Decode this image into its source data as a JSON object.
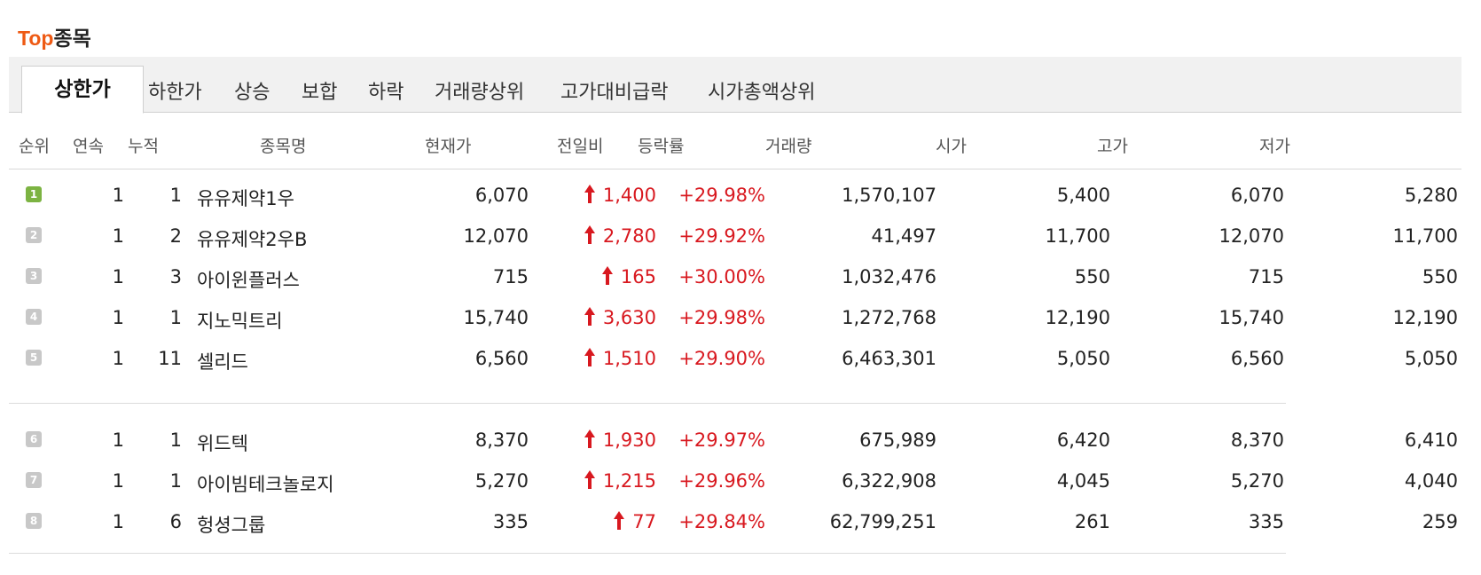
{
  "section": {
    "title_accent": "Top",
    "title_rest": "종목"
  },
  "tabs": [
    "상한가",
    "하한가",
    "상승",
    "보합",
    "하락",
    "거래량상위",
    "고가대비급락",
    "시가총액상위"
  ],
  "columns": [
    "순위",
    "연속",
    "누적",
    "종목명",
    "현재가",
    "전일비",
    "등락률",
    "거래량",
    "시가",
    "고가",
    "저가"
  ],
  "colors": {
    "accent": "#ee5a14",
    "up": "#d8181f",
    "rank1": "#7cb342",
    "rank": "#c8c8c8"
  },
  "rows": [
    {
      "rank": "1",
      "cont": "1",
      "cum": "1",
      "name": "유유제약1우",
      "price": "6,070",
      "change": "1,400",
      "rate": "+29.98%",
      "volume": "1,570,107",
      "open": "5,400",
      "high": "6,070",
      "low": "5,280"
    },
    {
      "rank": "2",
      "cont": "1",
      "cum": "2",
      "name": "유유제약2우B",
      "price": "12,070",
      "change": "2,780",
      "rate": "+29.92%",
      "volume": "41,497",
      "open": "11,700",
      "high": "12,070",
      "low": "11,700"
    },
    {
      "rank": "3",
      "cont": "1",
      "cum": "3",
      "name": "아이윈플러스",
      "price": "715",
      "change": "165",
      "rate": "+30.00%",
      "volume": "1,032,476",
      "open": "550",
      "high": "715",
      "low": "550"
    },
    {
      "rank": "4",
      "cont": "1",
      "cum": "1",
      "name": "지노믹트리",
      "price": "15,740",
      "change": "3,630",
      "rate": "+29.98%",
      "volume": "1,272,768",
      "open": "12,190",
      "high": "15,740",
      "low": "12,190"
    },
    {
      "rank": "5",
      "cont": "1",
      "cum": "11",
      "name": "셀리드",
      "price": "6,560",
      "change": "1,510",
      "rate": "+29.90%",
      "volume": "6,463,301",
      "open": "5,050",
      "high": "6,560",
      "low": "5,050"
    },
    {
      "rank": "6",
      "cont": "1",
      "cum": "1",
      "name": "위드텍",
      "price": "8,370",
      "change": "1,930",
      "rate": "+29.97%",
      "volume": "675,989",
      "open": "6,420",
      "high": "8,370",
      "low": "6,410"
    },
    {
      "rank": "7",
      "cont": "1",
      "cum": "1",
      "name": "아이빔테크놀로지",
      "price": "5,270",
      "change": "1,215",
      "rate": "+29.96%",
      "volume": "6,322,908",
      "open": "4,045",
      "high": "5,270",
      "low": "4,040"
    },
    {
      "rank": "8",
      "cont": "1",
      "cum": "6",
      "name": "헝셩그룹",
      "price": "335",
      "change": "77",
      "rate": "+29.84%",
      "volume": "62,799,251",
      "open": "261",
      "high": "335",
      "low": "259"
    }
  ]
}
